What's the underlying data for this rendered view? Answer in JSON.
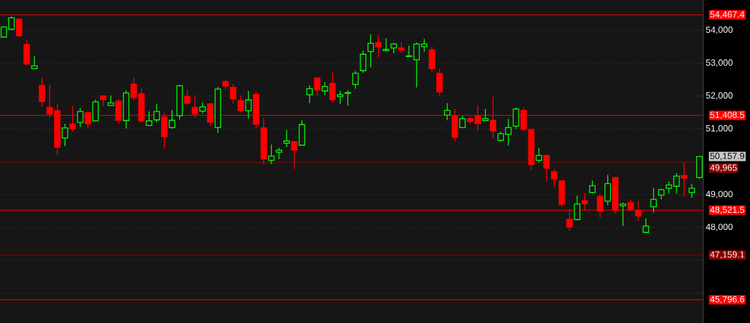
{
  "chart_data": {
    "type": "candlestick",
    "categories": [
      null,
      null,
      null,
      null,
      null,
      null,
      null,
      null,
      null,
      null,
      null,
      null,
      null,
      null,
      null,
      null,
      null,
      null,
      null,
      null,
      null,
      null,
      null,
      null,
      null,
      null,
      null,
      null,
      null,
      null,
      null,
      null,
      null,
      null,
      null,
      null,
      null,
      null,
      null,
      null,
      null,
      null,
      null,
      null,
      null,
      null,
      null,
      null,
      null,
      null,
      null,
      null,
      null,
      null,
      null,
      null,
      null,
      null,
      null,
      null,
      null,
      null,
      null,
      null,
      null,
      null,
      null,
      null,
      null,
      null,
      null,
      null,
      null,
      null,
      null,
      null,
      null,
      null,
      null,
      null,
      null,
      null,
      null,
      null,
      null,
      null,
      null,
      null,
      null,
      null,
      null,
      null
    ],
    "ohlc": [
      [
        53790,
        54110,
        53790,
        54100
      ],
      [
        54030,
        54420,
        54000,
        54380
      ],
      [
        54340,
        54360,
        53790,
        53830
      ],
      [
        53570,
        53710,
        52930,
        52970
      ],
      [
        52830,
        53220,
        52830,
        52920
      ],
      [
        52320,
        52570,
        51680,
        51830
      ],
      [
        51650,
        52340,
        51350,
        51450
      ],
      [
        51550,
        51760,
        50200,
        50440
      ],
      [
        50720,
        51150,
        50470,
        51030
      ],
      [
        51150,
        51690,
        50910,
        50990
      ],
      [
        51190,
        51630,
        51050,
        51530
      ],
      [
        51490,
        51530,
        51010,
        51150
      ],
      [
        51240,
        51890,
        51220,
        51820
      ],
      [
        52000,
        52010,
        51690,
        51890
      ],
      [
        51710,
        52010,
        51700,
        51790
      ],
      [
        51840,
        51900,
        51150,
        51260
      ],
      [
        51250,
        52170,
        51010,
        52090
      ],
      [
        52360,
        52570,
        51870,
        51950
      ],
      [
        52070,
        52240,
        51180,
        51240
      ],
      [
        51100,
        51530,
        51100,
        51240
      ],
      [
        51270,
        51760,
        51200,
        51530
      ],
      [
        51360,
        51490,
        50390,
        50760
      ],
      [
        51040,
        51570,
        51000,
        51260
      ],
      [
        51400,
        52340,
        51280,
        52310
      ],
      [
        51990,
        52190,
        51740,
        51780
      ],
      [
        51650,
        52010,
        51330,
        51450
      ],
      [
        51540,
        51800,
        51470,
        51670
      ],
      [
        51760,
        51770,
        51070,
        51200
      ],
      [
        51040,
        52280,
        50870,
        52210
      ],
      [
        52440,
        52490,
        52200,
        52300
      ],
      [
        52260,
        52360,
        51760,
        51910
      ],
      [
        51860,
        52010,
        51490,
        51550
      ],
      [
        51550,
        52150,
        51300,
        51880
      ],
      [
        52050,
        52150,
        51010,
        51140
      ],
      [
        51030,
        51340,
        49910,
        50080
      ],
      [
        50040,
        50520,
        49930,
        50170
      ],
      [
        50290,
        50420,
        50080,
        50350
      ],
      [
        50560,
        50970,
        50440,
        50630
      ],
      [
        50610,
        50630,
        49780,
        50350
      ],
      [
        50500,
        51260,
        50500,
        51130
      ],
      [
        52040,
        52320,
        51780,
        52220
      ],
      [
        52550,
        52550,
        52010,
        52180
      ],
      [
        52150,
        52420,
        52030,
        52290
      ],
      [
        52380,
        52740,
        51780,
        51890
      ],
      [
        51980,
        52150,
        51760,
        52040
      ],
      [
        52080,
        52170,
        51700,
        52100
      ],
      [
        52350,
        52760,
        52220,
        52690
      ],
      [
        52770,
        53380,
        52700,
        53270
      ],
      [
        53350,
        53880,
        52870,
        53600
      ],
      [
        53630,
        53860,
        53180,
        53490
      ],
      [
        53380,
        53760,
        53350,
        53420
      ],
      [
        53460,
        53620,
        53300,
        53580
      ],
      [
        53460,
        53630,
        53300,
        53390
      ],
      [
        53200,
        53530,
        53190,
        53220
      ],
      [
        53100,
        53630,
        52260,
        53580
      ],
      [
        53500,
        53740,
        53350,
        53580
      ],
      [
        53400,
        53510,
        52720,
        52830
      ],
      [
        52690,
        52820,
        52010,
        52120
      ],
      [
        51420,
        51780,
        51260,
        51560
      ],
      [
        51400,
        51610,
        50620,
        50740
      ],
      [
        51040,
        51400,
        51040,
        51310
      ],
      [
        51310,
        51370,
        51140,
        51220
      ],
      [
        51390,
        51720,
        50950,
        51160
      ],
      [
        51250,
        51610,
        51250,
        51310
      ],
      [
        51260,
        51970,
        50720,
        50930
      ],
      [
        50650,
        50920,
        50600,
        50850
      ],
      [
        50830,
        51300,
        50490,
        51040
      ],
      [
        51080,
        51650,
        51000,
        51600
      ],
      [
        51560,
        51650,
        50920,
        50980
      ],
      [
        50980,
        51000,
        49740,
        49910
      ],
      [
        50040,
        50420,
        49980,
        50190
      ],
      [
        50190,
        50210,
        49390,
        49800
      ],
      [
        49690,
        49780,
        49220,
        49470
      ],
      [
        49420,
        49440,
        48620,
        48700
      ],
      [
        48250,
        48570,
        47890,
        48010
      ],
      [
        48240,
        48970,
        48220,
        48710
      ],
      [
        48810,
        49050,
        48510,
        48720
      ],
      [
        49060,
        49420,
        49020,
        49270
      ],
      [
        48940,
        49000,
        48300,
        48500
      ],
      [
        48800,
        49600,
        48680,
        49330
      ],
      [
        49520,
        49520,
        48430,
        48530
      ],
      [
        48660,
        48750,
        48050,
        48710
      ],
      [
        48750,
        48850,
        48510,
        48550
      ],
      [
        48520,
        48810,
        48200,
        48350
      ],
      [
        47850,
        48270,
        47830,
        48040
      ],
      [
        48630,
        49210,
        48450,
        48850
      ],
      [
        48980,
        49170,
        48850,
        49150
      ],
      [
        49190,
        49400,
        49030,
        49290
      ],
      [
        49250,
        49650,
        49030,
        49560
      ],
      [
        49580,
        49980,
        48940,
        49500
      ],
      [
        49060,
        49330,
        48900,
        49190
      ],
      [
        49520,
        50170,
        49480,
        50158
      ]
    ],
    "ylim": [
      45090,
      54920
    ],
    "yticks": [
      {
        "value": 46000,
        "label": null
      },
      {
        "value": 47000,
        "label": null
      },
      {
        "value": 48000,
        "label": "48,000"
      },
      {
        "value": 49000,
        "label": "49,000"
      },
      {
        "value": 50000,
        "label": null
      },
      {
        "value": 51000,
        "label": "51,000"
      },
      {
        "value": 52000,
        "label": "52,000"
      },
      {
        "value": 53000,
        "label": "53,000"
      },
      {
        "value": 54000,
        "label": "54,000"
      }
    ],
    "tick_labels": "y",
    "grid": "y",
    "ref_lines": [
      {
        "axis": "y",
        "value": 54467.4,
        "label": "54,467.4",
        "color": "#ff0000"
      },
      {
        "axis": "y",
        "value": 51408.5,
        "label": "51,408.5",
        "color": "#ff0000"
      },
      {
        "axis": "y",
        "value": 49965,
        "label": "49,965",
        "color": "#8b0000"
      },
      {
        "axis": "y",
        "value": 48521.5,
        "label": "48,521.5",
        "color": "#ff0000"
      },
      {
        "axis": "y",
        "value": 47159.1,
        "label": "47,159.1",
        "color": "#8b0000"
      },
      {
        "axis": "y",
        "value": 45796.6,
        "label": "45,796.6",
        "color": "#ff0000"
      }
    ],
    "annotations": [
      "50,157.9"
    ]
  }
}
